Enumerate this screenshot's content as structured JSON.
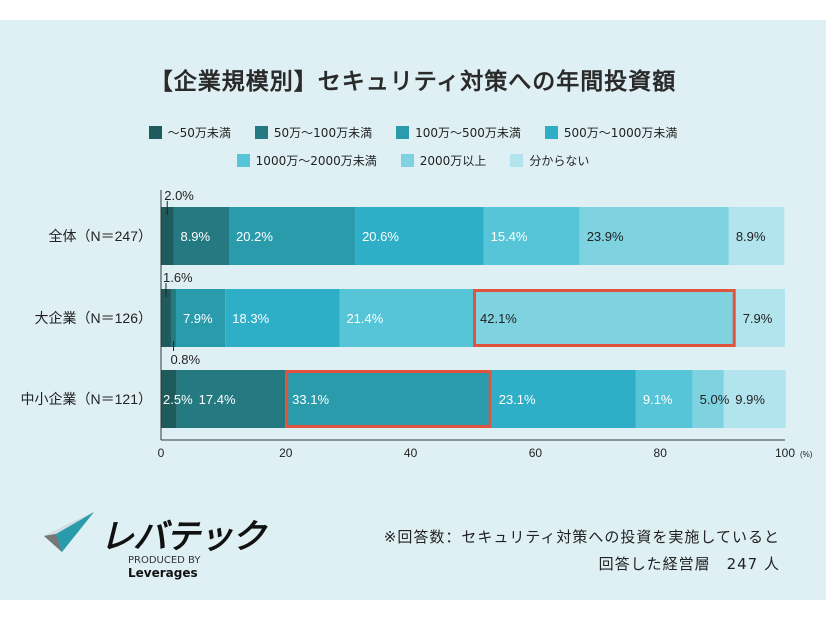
{
  "chart_data": {
    "type": "bar",
    "orientation": "horizontal-stacked",
    "title": "【企業規模別】セキュリティ対策への年間投資額",
    "categories": [
      "全体（N＝247）",
      "大企業（N＝126）",
      "中小企業（N＝121）"
    ],
    "series": [
      {
        "name": "～50万未満",
        "color": "#1f5a5c",
        "values": [
          2.0,
          1.6,
          2.5
        ]
      },
      {
        "name": "50万～100万未満",
        "color": "#247a80",
        "values": [
          8.9,
          0.8,
          17.4
        ]
      },
      {
        "name": "100万～500万未満",
        "color": "#2a9bab",
        "values": [
          20.2,
          7.9,
          33.1
        ]
      },
      {
        "name": "500万～1000万未満",
        "color": "#2eaec7",
        "values": [
          20.6,
          18.3,
          23.1
        ]
      },
      {
        "name": "1000万～2000万未満",
        "color": "#56c5d7",
        "values": [
          15.4,
          21.4,
          9.1
        ]
      },
      {
        "name": "2000万以上",
        "color": "#7fd2e0",
        "values": [
          23.9,
          42.1,
          5.0
        ]
      },
      {
        "name": "分からない",
        "color": "#b1e4ed",
        "values": [
          8.9,
          7.9,
          9.9
        ]
      }
    ],
    "highlights": [
      {
        "category": "大企業（N＝126）",
        "series": "2000万以上"
      },
      {
        "category": "中小企業（N＝121）",
        "series": "100万～500万未満"
      }
    ],
    "xlim": [
      0,
      100
    ],
    "xticks": [
      0,
      20,
      40,
      60,
      80,
      100
    ],
    "xunit": "(%)",
    "value_suffix": "%",
    "legend": "top",
    "grid": false
  },
  "footer": {
    "logo_text": "レバテック",
    "logo_sub_prefix": "PRODUCED BY",
    "logo_sub_brand": "Leverages",
    "note_line1": "※回答数：セキュリティ対策への投資を実施していると",
    "note_line2": "回答した経営層　247 人"
  }
}
